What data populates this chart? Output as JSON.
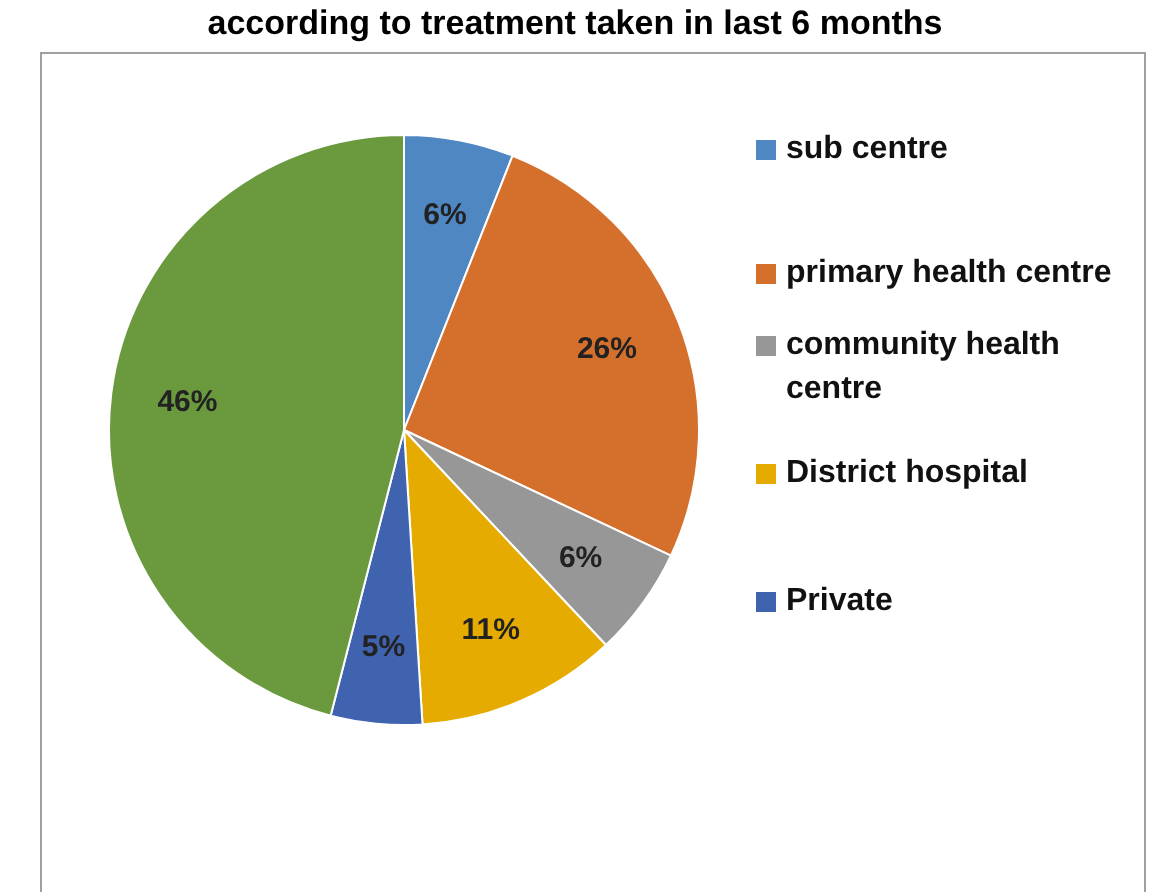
{
  "chart_data": {
    "type": "pie",
    "title": "according to treatment taken in last 6 months",
    "categories": [
      "sub centre",
      "primary health centre",
      "community health centre",
      "District hospital",
      "Private",
      null
    ],
    "values": [
      6,
      26,
      6,
      11,
      5,
      46
    ],
    "colors": [
      "#4f87c3",
      "#d5702c",
      "#979797",
      "#e6ab00",
      "#3f63ae",
      "#6a9a3d"
    ],
    "value_labels": [
      "6%",
      "26%",
      "6%",
      "11%",
      "5%",
      "46%"
    ],
    "legend": "right"
  }
}
